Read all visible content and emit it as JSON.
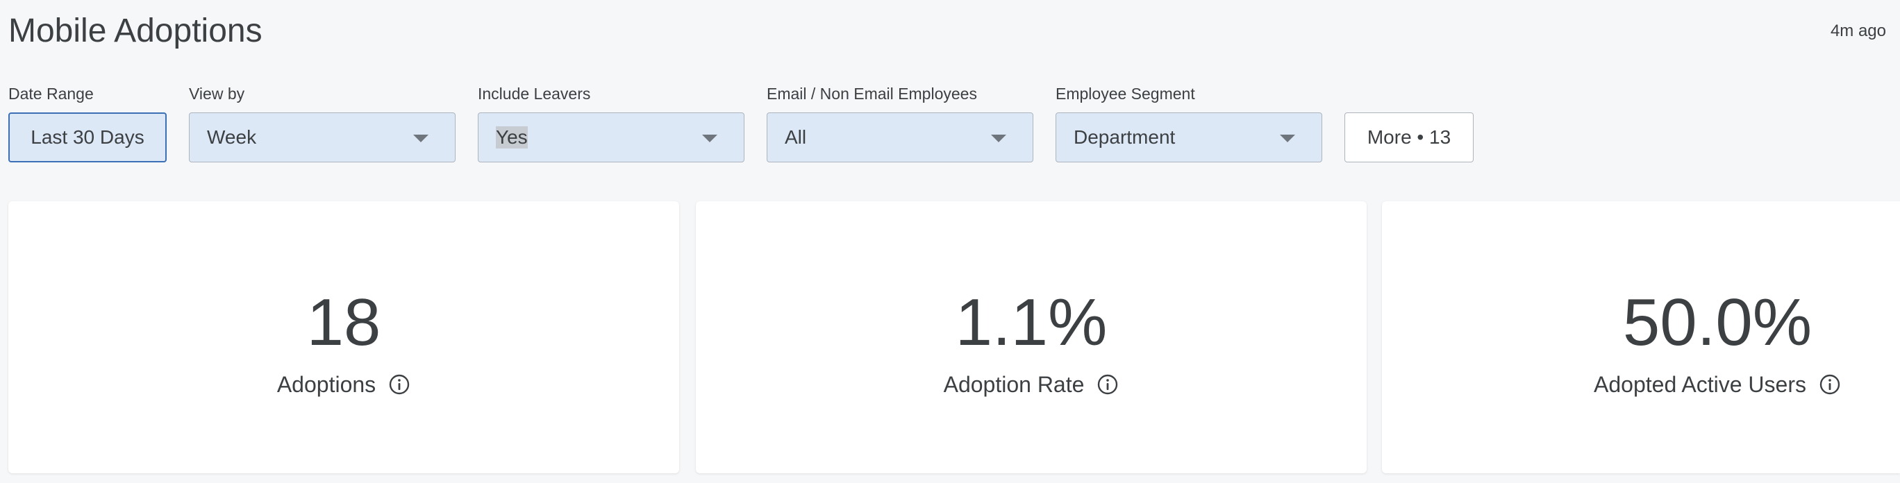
{
  "header": {
    "title": "Mobile Adoptions",
    "updated": "4m ago"
  },
  "filters": {
    "date_range": {
      "label": "Date Range",
      "value": "Last 30 Days"
    },
    "view_by": {
      "label": "View by",
      "value": "Week"
    },
    "include_leavers": {
      "label": "Include Leavers",
      "value": "Yes"
    },
    "email_employees": {
      "label": "Email / Non Email Employees",
      "value": "All"
    },
    "employee_segment": {
      "label": "Employee Segment",
      "value": "Department"
    },
    "more_label": "More • 13"
  },
  "kpis": [
    {
      "value": "18",
      "label": "Adoptions",
      "icon": "info-icon"
    },
    {
      "value": "1.1%",
      "label": "Adoption Rate",
      "icon": "info-icon"
    },
    {
      "value": "50.0%",
      "label": "Adopted Active Users",
      "icon": "info-icon"
    }
  ],
  "colors": {
    "background": "#f6f7f9",
    "filter_fill": "#dde8f7",
    "active_border": "#3b6fb6",
    "text": "#3c4043",
    "card": "#ffffff"
  }
}
